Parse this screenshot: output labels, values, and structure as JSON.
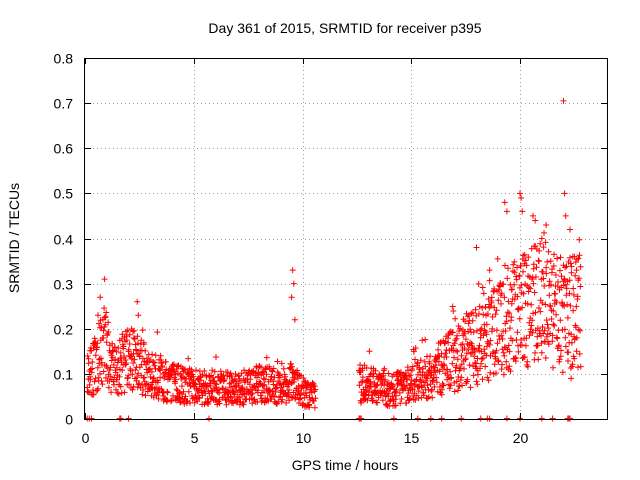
{
  "chart_data": {
    "type": "scatter",
    "title": "Day 361 of 2015, SRMTID for receiver p395",
    "xlabel": "GPS time / hours",
    "ylabel": "SRMTID / TECUs",
    "xlim": [
      0,
      24
    ],
    "ylim": [
      0,
      0.8
    ],
    "xticks": [
      0,
      5,
      10,
      15,
      20
    ],
    "yticks": [
      0,
      0.1,
      0.2,
      0.3,
      0.4,
      0.5,
      0.6,
      0.7,
      0.8
    ],
    "grid": true,
    "marker": "+",
    "color": "#ff0000",
    "segments": [
      {
        "x_start": 0.1,
        "x_end": 10.6,
        "profile": [
          [
            0.1,
            0.09
          ],
          [
            0.5,
            0.12
          ],
          [
            0.9,
            0.17
          ],
          [
            1.3,
            0.1
          ],
          [
            1.6,
            0.12
          ],
          [
            2.0,
            0.13
          ],
          [
            2.5,
            0.12
          ],
          [
            3.0,
            0.1
          ],
          [
            3.5,
            0.09
          ],
          [
            4.0,
            0.08
          ],
          [
            5.0,
            0.07
          ],
          [
            6.0,
            0.07
          ],
          [
            7.0,
            0.065
          ],
          [
            8.0,
            0.08
          ],
          [
            9.0,
            0.07
          ],
          [
            9.5,
            0.08
          ],
          [
            10.0,
            0.06
          ],
          [
            10.6,
            0.05
          ]
        ]
      },
      {
        "x_start": 12.6,
        "x_end": 22.8,
        "profile": [
          [
            12.6,
            0.08
          ],
          [
            13.5,
            0.07
          ],
          [
            14.0,
            0.06
          ],
          [
            14.5,
            0.07
          ],
          [
            15.0,
            0.08
          ],
          [
            15.5,
            0.09
          ],
          [
            16.0,
            0.1
          ],
          [
            16.5,
            0.12
          ],
          [
            17.0,
            0.13
          ],
          [
            17.5,
            0.15
          ],
          [
            18.0,
            0.16
          ],
          [
            18.5,
            0.18
          ],
          [
            19.0,
            0.2
          ],
          [
            19.5,
            0.22
          ],
          [
            20.0,
            0.23
          ],
          [
            20.5,
            0.25
          ],
          [
            21.0,
            0.26
          ],
          [
            21.5,
            0.24
          ],
          [
            22.0,
            0.22
          ],
          [
            22.5,
            0.24
          ],
          [
            22.8,
            0.24
          ]
        ]
      }
    ],
    "spikes": [
      {
        "x": 0.7,
        "y": 0.27
      },
      {
        "x": 0.9,
        "y": 0.31
      },
      {
        "x": 0.6,
        "y": 0.23
      },
      {
        "x": 2.4,
        "y": 0.26
      },
      {
        "x": 2.45,
        "y": 0.23
      },
      {
        "x": 9.55,
        "y": 0.33
      },
      {
        "x": 9.6,
        "y": 0.3
      },
      {
        "x": 9.5,
        "y": 0.27
      },
      {
        "x": 9.65,
        "y": 0.22
      },
      {
        "x": 18.0,
        "y": 0.38
      },
      {
        "x": 18.6,
        "y": 0.33
      },
      {
        "x": 19.3,
        "y": 0.48
      },
      {
        "x": 19.4,
        "y": 0.46
      },
      {
        "x": 20.0,
        "y": 0.5
      },
      {
        "x": 20.05,
        "y": 0.49
      },
      {
        "x": 20.1,
        "y": 0.46
      },
      {
        "x": 20.6,
        "y": 0.45
      },
      {
        "x": 20.7,
        "y": 0.44
      },
      {
        "x": 21.2,
        "y": 0.43
      },
      {
        "x": 21.0,
        "y": 0.4
      },
      {
        "x": 22.0,
        "y": 0.705
      },
      {
        "x": 22.05,
        "y": 0.5
      },
      {
        "x": 22.1,
        "y": 0.45
      },
      {
        "x": 22.3,
        "y": 0.42
      },
      {
        "x": 22.5,
        "y": 0.36
      },
      {
        "x": 22.6,
        "y": 0.33
      },
      {
        "x": 22.35,
        "y": 0.09
      }
    ],
    "zero_points_x": [
      0.1,
      0.2,
      0.3,
      1.6,
      1.65,
      2.0,
      5.7,
      12.6,
      12.65,
      12.7,
      14.2,
      15.3,
      15.9,
      16.4,
      17.3,
      18.2,
      18.5,
      18.6,
      19.4,
      20.0,
      21.0,
      21.5,
      22.2,
      22.25,
      22.3
    ]
  }
}
